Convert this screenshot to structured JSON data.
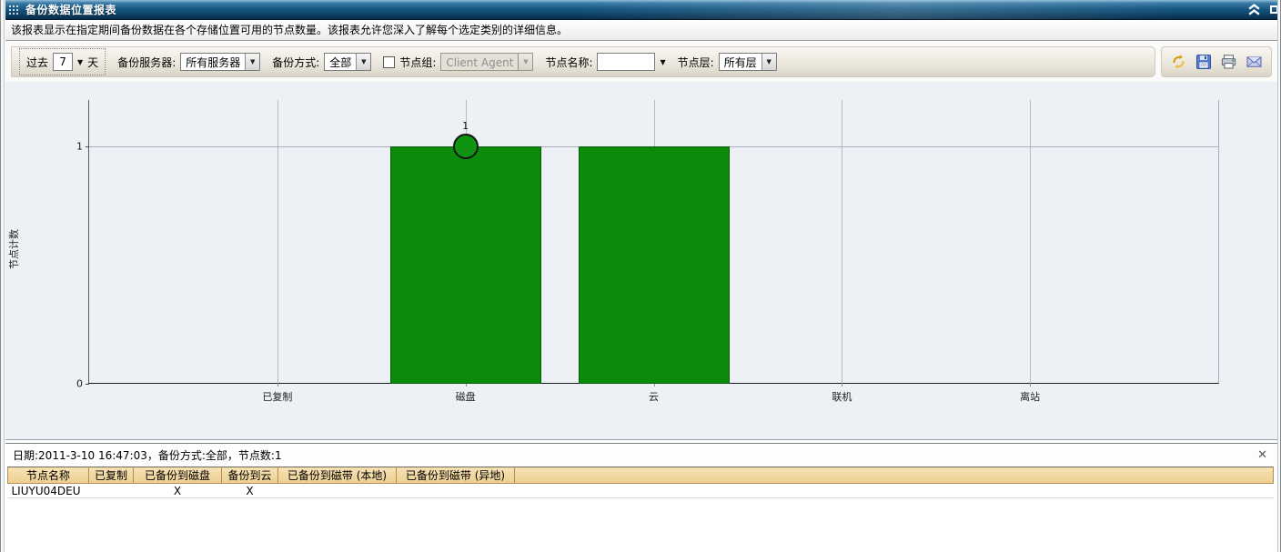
{
  "window": {
    "title": "备份数据位置报表",
    "description": "该报表显示在指定期间备份数据在各个存储位置可用的节点数量。该报表允许您深入了解每个选定类别的详细信息。",
    "titlebar_color": "#175a84"
  },
  "toolbar": {
    "past_label": "过去",
    "past_value": "7",
    "days_label": "天",
    "backup_server_label": "备份服务器:",
    "backup_server_value": "所有服务器",
    "backup_method_label": "备份方式:",
    "backup_method_value": "全部",
    "node_group_label": "节点组:",
    "node_group_value": "Client Agent",
    "node_group_enabled": false,
    "node_name_label": "节点名称:",
    "node_name_value": "",
    "node_tier_label": "节点层:",
    "node_tier_value": "所有层",
    "icons": [
      "refresh-icon",
      "save-icon",
      "print-icon",
      "email-icon"
    ]
  },
  "chart_data": {
    "type": "bar",
    "title": "",
    "categories": [
      "已复制",
      "磁盘",
      "云",
      "联机",
      "离站"
    ],
    "values": [
      0,
      1,
      1,
      0,
      0
    ],
    "xlabel": "",
    "ylabel": "节点计数",
    "yticks": [
      0,
      1
    ],
    "ylim": [
      0,
      1.2
    ],
    "grid": true,
    "legend": "none",
    "bar_color": "#0a8c0a",
    "selected_point": {
      "category": "磁盘",
      "value": 1,
      "label": "1"
    }
  },
  "detail_panel": {
    "header": "日期:2011-3-10 16:47:03，备份方式:全部，节点数:1",
    "close_label": "✕",
    "table": {
      "columns": [
        "节点名称",
        "已复制",
        "已备份到磁盘",
        "备份到云",
        "已备份到磁带 (本地)",
        "已备份到磁带 (异地)"
      ],
      "rows": [
        [
          "LIUYU04DEU",
          "",
          "X",
          "X",
          "",
          ""
        ]
      ]
    }
  },
  "colors": {
    "bar_green": "#0a8c0a",
    "table_header_tan": "#f2d9a6",
    "chart_background": "#edf1f6",
    "refresh_gold": "#d99e18",
    "save_blue": "#5b7fd0",
    "mail_lavender": "#c8d0f0"
  }
}
